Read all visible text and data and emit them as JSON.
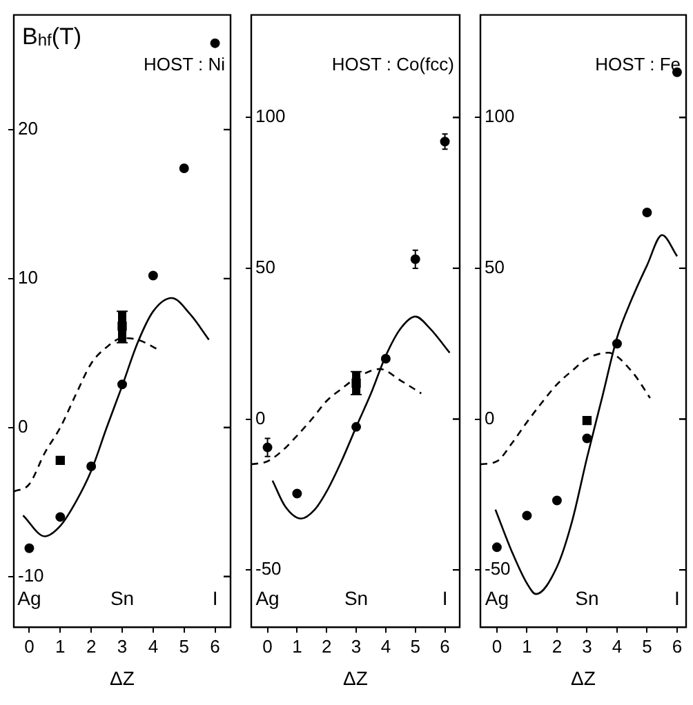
{
  "chart_data": [
    {
      "type": "scatter",
      "title": "HOST : Ni",
      "ylabel": "B$_{hf}$(T)",
      "xlabel": "ΔZ",
      "xlim": [
        -0.5,
        6.5
      ],
      "xticks": [
        0,
        1,
        2,
        3,
        4,
        5,
        6
      ],
      "ylim": [
        -13.4,
        27.7
      ],
      "yticks": [
        -10,
        0,
        10,
        20
      ],
      "grid": false,
      "legend": false,
      "annotations": [
        "Ag",
        "Sn",
        "I"
      ],
      "series": [
        {
          "type": "scatter",
          "marker": "circle",
          "color": "#000000",
          "x": [
            0,
            1,
            2,
            3,
            4,
            5,
            6
          ],
          "values": [
            -8.1,
            -6.0,
            -2.6,
            2.9,
            10.2,
            17.4,
            25.8
          ]
        },
        {
          "type": "scatter",
          "marker": "square",
          "color": "#000000",
          "x": [
            1,
            3
          ],
          "values": [
            -2.2,
            6.8
          ],
          "errors": [
            null,
            [
              5.7,
              7.8
            ]
          ]
        },
        {
          "type": "line",
          "marker": "none",
          "line_style": "solid",
          "color": "#000000",
          "x": [
            -0.2,
            0.5,
            1,
            1.5,
            2,
            2.5,
            3,
            3.5,
            4,
            4.6,
            5.2,
            5.8
          ],
          "values": [
            -5.9,
            -7.3,
            -6.6,
            -5.0,
            -2.9,
            0,
            2.8,
            5.7,
            7.8,
            8.7,
            7.6,
            5.9
          ]
        },
        {
          "type": "line",
          "marker": "none",
          "line_style": "dashed",
          "color": "#000000",
          "x": [
            -0.5,
            0,
            0.5,
            1,
            1.5,
            2,
            2.5,
            3,
            3.5,
            4.2
          ],
          "values": [
            -4.3,
            -3.8,
            -1.7,
            0,
            2.2,
            4.3,
            5.4,
            6.0,
            5.9,
            5.2
          ]
        }
      ]
    },
    {
      "type": "scatter",
      "title": "HOST : Co(fcc)",
      "xlabel": "ΔZ",
      "xlim": [
        -0.55,
        6.5
      ],
      "xticks": [
        0,
        1,
        2,
        3,
        4,
        5,
        6
      ],
      "ylim": [
        -69,
        134
      ],
      "yticks": [
        -50,
        0,
        50,
        100
      ],
      "grid": false,
      "legend": false,
      "annotations": [
        "Ag",
        "Sn",
        "I"
      ],
      "series": [
        {
          "type": "scatter",
          "marker": "circle",
          "color": "#000000",
          "x": [
            0,
            1,
            3,
            4,
            5,
            6
          ],
          "values": [
            -9.4,
            -24.7,
            -2.6,
            20,
            53,
            92
          ],
          "errors": [
            3,
            null,
            null,
            null,
            3,
            2.5
          ]
        },
        {
          "type": "scatter",
          "marker": "square",
          "color": "#000000",
          "x": [
            3
          ],
          "values": [
            11.9
          ],
          "errors": [
            [
              8.1,
              15.7
            ]
          ]
        },
        {
          "type": "line",
          "marker": "none",
          "line_style": "solid",
          "color": "#000000",
          "x": [
            0.17,
            0.6,
            1.14,
            1.6,
            2,
            2.5,
            3,
            3.5,
            4,
            4.5,
            5,
            5.5,
            6.16
          ],
          "values": [
            -20.4,
            -29,
            -33,
            -30,
            -24,
            -14,
            -2.6,
            8.5,
            21,
            30,
            34,
            30,
            22
          ]
        },
        {
          "type": "line",
          "marker": "none",
          "line_style": "dashed",
          "color": "#000000",
          "x": [
            -0.55,
            0,
            0.5,
            1,
            1.5,
            2,
            2.5,
            3,
            3.8,
            4.5,
            5.2
          ],
          "values": [
            -15,
            -14,
            -10.5,
            -5.5,
            0,
            6,
            10,
            13.6,
            16.6,
            12.8,
            8.5
          ]
        }
      ]
    },
    {
      "type": "scatter",
      "title": "HOST : Fe",
      "xlabel": "ΔZ",
      "xlim": [
        -0.55,
        6.3
      ],
      "xticks": [
        0,
        1,
        2,
        3,
        4,
        5,
        6
      ],
      "ylim": [
        -69,
        134
      ],
      "yticks": [
        -50,
        0,
        50,
        100
      ],
      "grid": false,
      "legend": false,
      "annotations": [
        "Ag",
        "Sn",
        "I"
      ],
      "series": [
        {
          "type": "scatter",
          "marker": "circle",
          "color": "#000000",
          "x": [
            0,
            1,
            2,
            3,
            4,
            5,
            6
          ],
          "values": [
            -42.5,
            -32,
            -27,
            -6.4,
            25,
            68.5,
            115
          ]
        },
        {
          "type": "scatter",
          "marker": "square",
          "color": "#000000",
          "x": [
            3
          ],
          "values": [
            -0.5
          ]
        },
        {
          "type": "line",
          "marker": "none",
          "line_style": "solid",
          "color": "#000000",
          "x": [
            -0.05,
            0.5,
            1,
            1.3,
            2,
            2.5,
            3,
            3.5,
            4,
            4.5,
            5,
            5.5,
            6
          ],
          "values": [
            -30,
            -44,
            -54.5,
            -58,
            -49,
            -34,
            -12.8,
            7,
            27,
            40,
            51,
            61,
            54
          ]
        },
        {
          "type": "line",
          "marker": "none",
          "line_style": "dashed",
          "color": "#000000",
          "x": [
            -0.55,
            0,
            0.5,
            1,
            1.5,
            2,
            2.5,
            3,
            3.7,
            4.5,
            5.1
          ],
          "values": [
            -15,
            -14,
            -8,
            -1,
            5.5,
            11.5,
            16,
            20,
            22,
            15.7,
            7
          ]
        }
      ]
    }
  ]
}
